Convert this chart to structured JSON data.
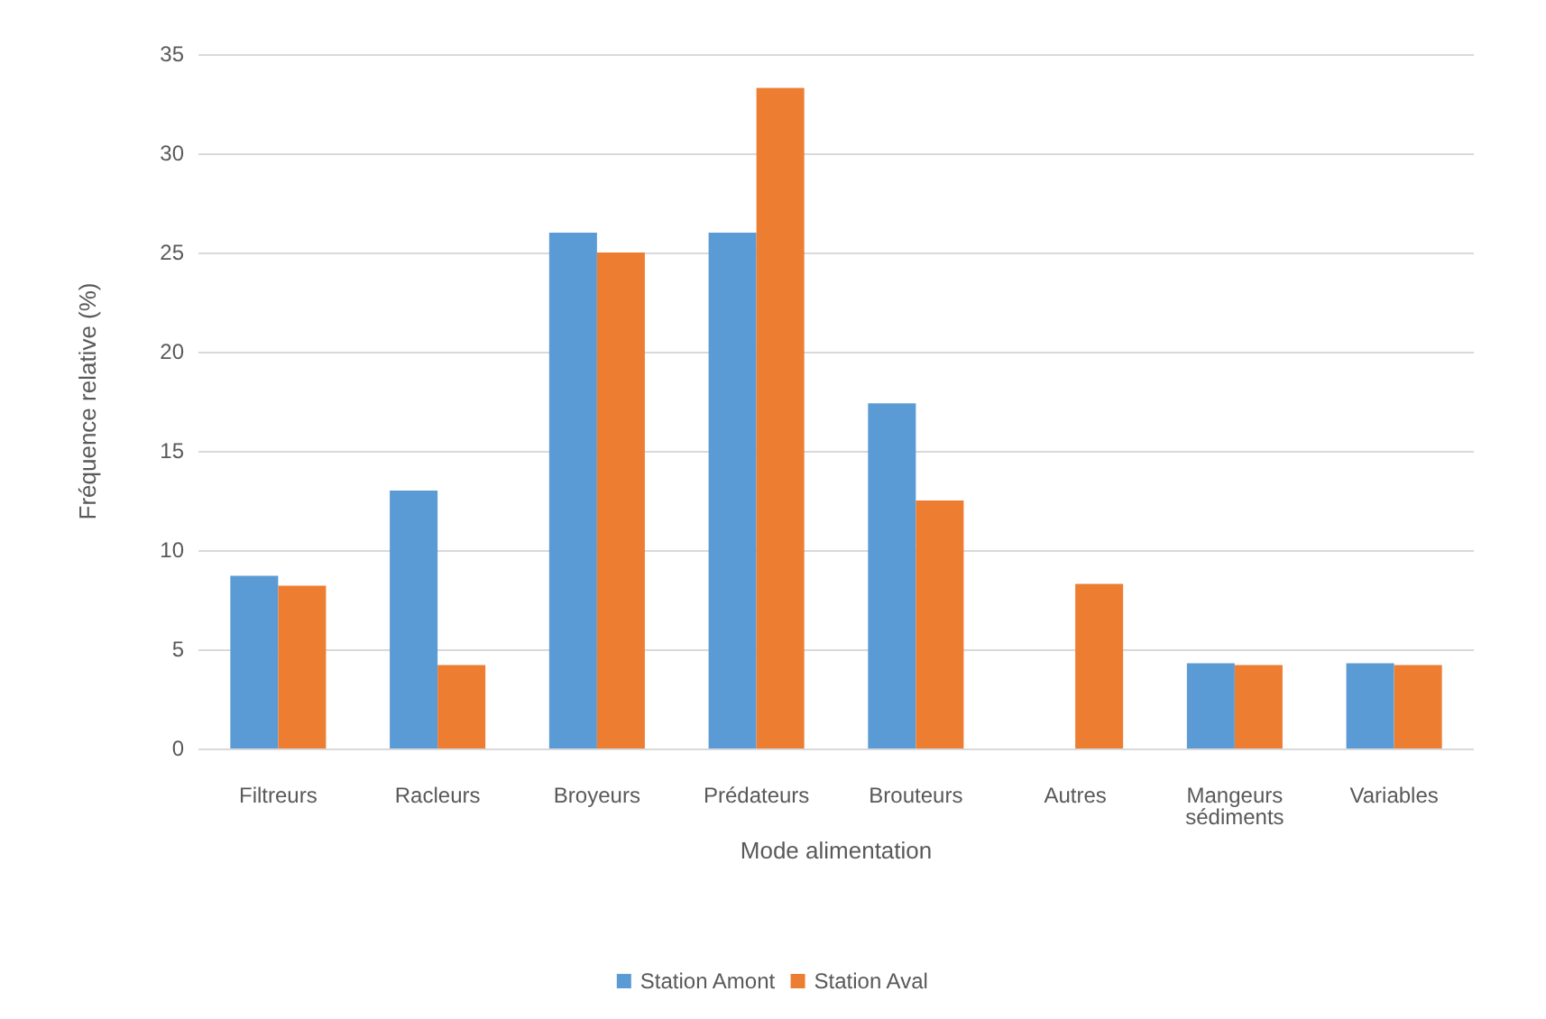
{
  "chart_data": {
    "type": "bar",
    "xlabel": "Mode alimentation",
    "ylabel": "Fréquence relative (%)",
    "categories": [
      "Filtreurs",
      "Racleurs",
      "Broyeurs",
      "Prédateurs",
      "Brouteurs",
      "Autres",
      "Mangeurs\nsédiments",
      "Variables"
    ],
    "series": [
      {
        "name": "Station Amont",
        "color": "#5b9bd5",
        "values": [
          8.7,
          13,
          26,
          26,
          17.4,
          0,
          4.3,
          4.3
        ]
      },
      {
        "name": "Station Aval",
        "color": "#ed7d31",
        "values": [
          8.2,
          4.2,
          25,
          33.3,
          12.5,
          8.3,
          4.2,
          4.2
        ]
      }
    ],
    "ylim": [
      0,
      35
    ],
    "yticks": [
      0,
      5,
      10,
      15,
      20,
      25,
      30,
      35
    ],
    "grid": "y",
    "legend": "bottom"
  }
}
